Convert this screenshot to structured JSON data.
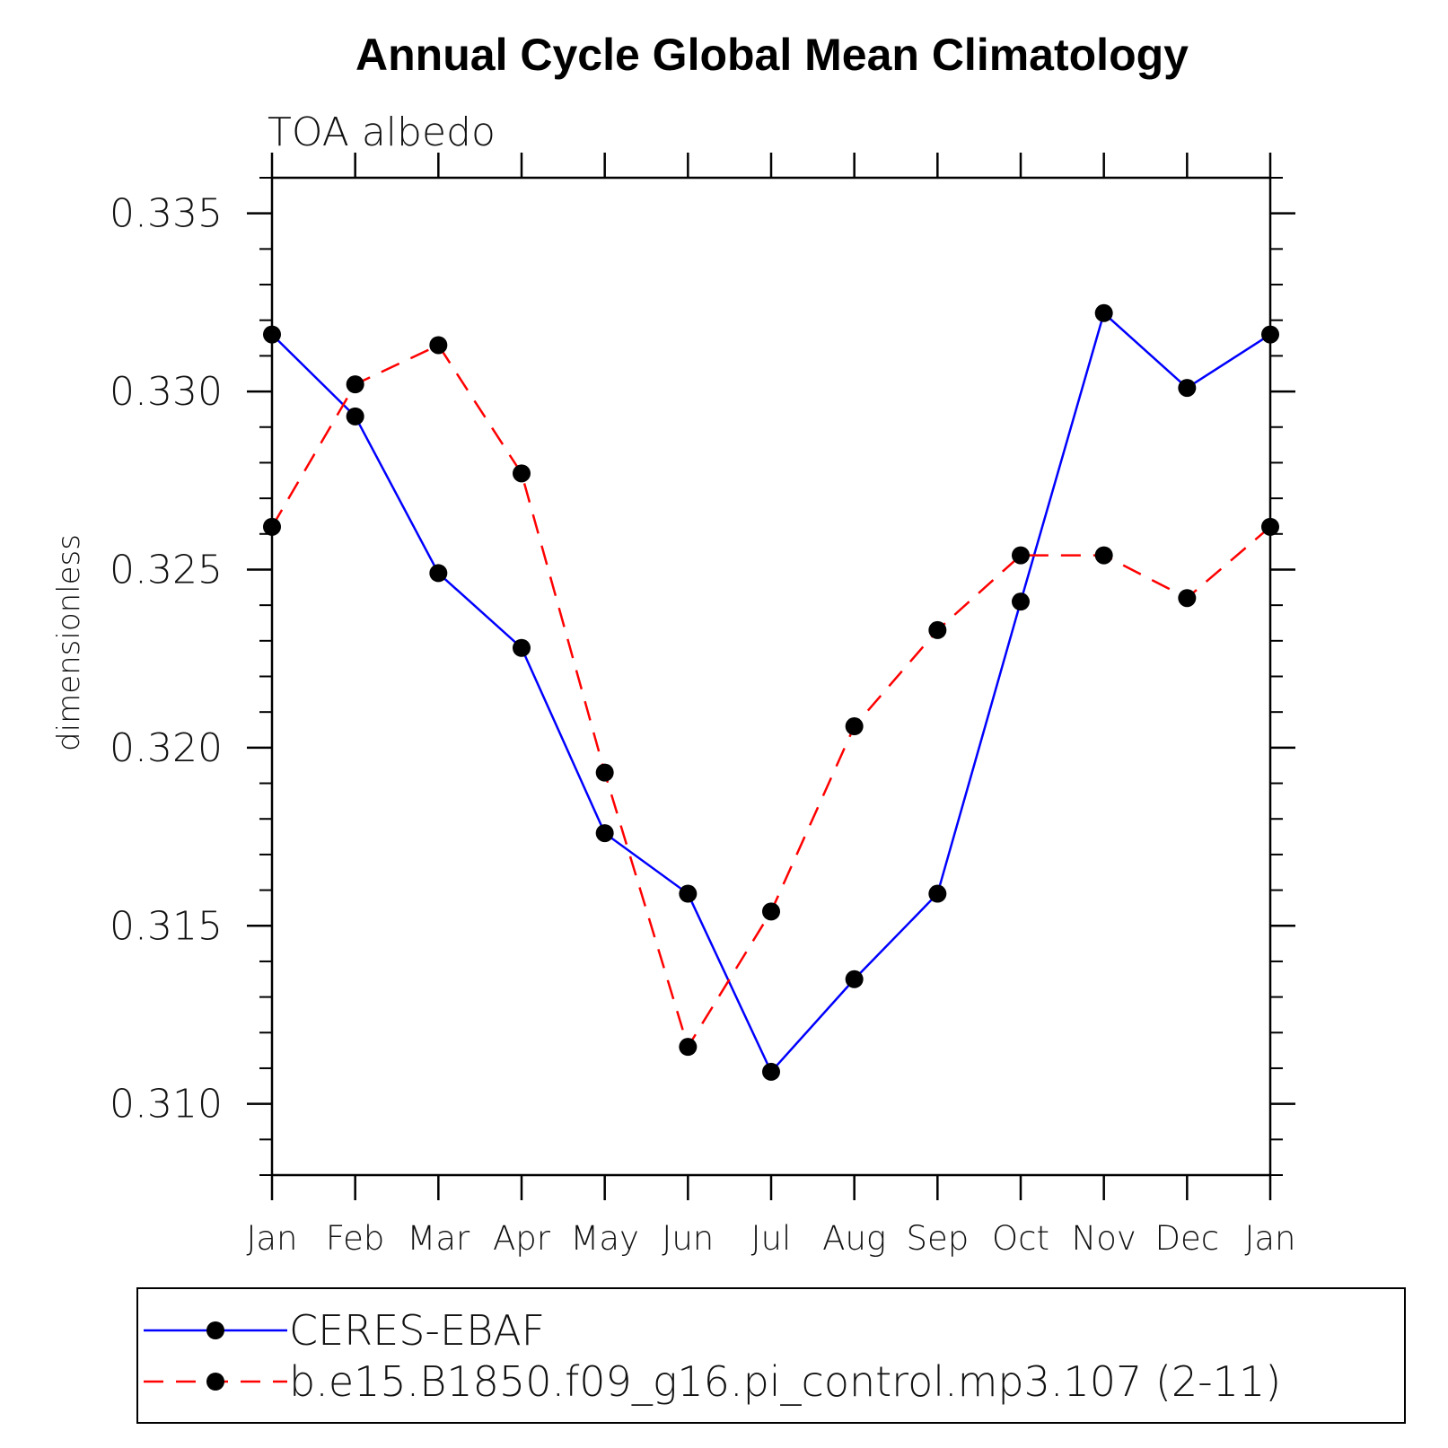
{
  "chart_data": {
    "type": "line",
    "title": "Annual Cycle Global Mean Climatology",
    "subtitle": "TOA albedo",
    "xlabel": "",
    "ylabel": "dimensionless",
    "categories": [
      "Jan",
      "Feb",
      "Mar",
      "Apr",
      "May",
      "Jun",
      "Jul",
      "Aug",
      "Sep",
      "Oct",
      "Nov",
      "Dec",
      "Jan"
    ],
    "ylim": [
      0.308,
      0.336
    ],
    "yticks": [
      "0.310",
      "0.315",
      "0.320",
      "0.325",
      "0.330",
      "0.335"
    ],
    "grid": false,
    "legend_position": "bottom",
    "series": [
      {
        "name": "CERES-EBAF",
        "color": "#0000ff",
        "dash": "solid",
        "marker": "filled-circle",
        "values": [
          0.3316,
          0.3293,
          0.3249,
          0.3228,
          0.3176,
          0.3159,
          0.3109,
          0.3135,
          0.3159,
          0.3241,
          0.3322,
          0.3301,
          0.3316
        ]
      },
      {
        "name": "b.e15.B1850.f09_g16.pi_control.mp3.107 (2-11)",
        "color": "#ff0000",
        "dash": "dashed",
        "marker": "filled-circle",
        "values": [
          0.3262,
          0.3302,
          0.3313,
          0.3277,
          0.3193,
          0.3116,
          0.3154,
          0.3206,
          0.3233,
          0.3254,
          0.3254,
          0.3242,
          0.3262
        ]
      }
    ]
  }
}
